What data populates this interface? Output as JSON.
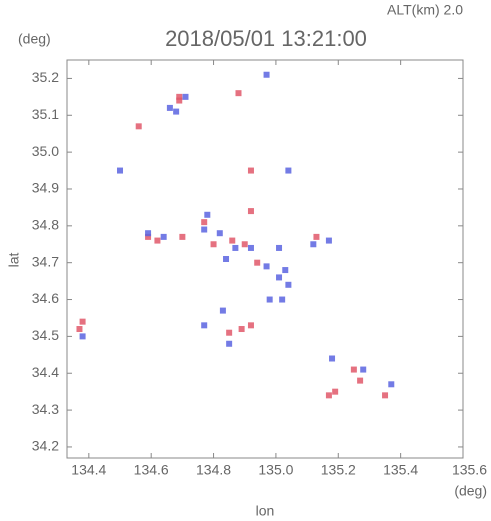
{
  "chart_data": {
    "type": "scatter",
    "title": "2018/05/01 13:21:00",
    "annotation": "ALT(km) 2.0",
    "y_unit": "(deg)",
    "x_unit": "(deg)",
    "xlabel": "lon",
    "ylabel": "lat",
    "xlim": [
      134.33,
      135.6
    ],
    "ylim": [
      34.17,
      35.25
    ],
    "xticks": [
      134.4,
      134.6,
      134.8,
      {
        "value": 135.0,
        "label": "135.0"
      },
      135.2,
      135.4,
      135.6
    ],
    "yticks": [
      34.2,
      34.3,
      34.4,
      34.5,
      34.6,
      34.7,
      34.8,
      34.9,
      {
        "value": 35.0,
        "label": "35.0"
      },
      35.1,
      35.2
    ],
    "series": [
      {
        "color": "#e0586a",
        "x": [
          134.38,
          134.37,
          134.59,
          134.62,
          134.7,
          134.77,
          134.8,
          134.86,
          134.9,
          134.94,
          134.89,
          134.92,
          134.85,
          134.92,
          135.25,
          135.27,
          135.17,
          135.19,
          135.35,
          134.69,
          134.69,
          134.92,
          134.56,
          134.88,
          135.13
        ],
        "values": [
          34.54,
          34.52,
          34.77,
          34.76,
          34.77,
          34.81,
          34.75,
          34.76,
          34.75,
          34.7,
          34.52,
          34.53,
          34.51,
          34.84,
          34.41,
          34.38,
          34.34,
          34.35,
          34.34,
          35.15,
          35.14,
          34.95,
          35.07,
          35.16,
          34.77
        ]
      },
      {
        "color": "#5a64e0",
        "x": [
          134.38,
          134.66,
          134.68,
          134.71,
          134.59,
          134.64,
          134.78,
          134.77,
          134.82,
          134.84,
          134.87,
          134.92,
          134.97,
          135.01,
          135.04,
          135.03,
          134.98,
          134.83,
          134.85,
          134.77,
          135.12,
          135.17,
          135.18,
          135.28,
          135.37,
          135.04,
          134.5,
          134.97,
          135.01,
          135.02
        ],
        "values": [
          34.5,
          35.12,
          35.11,
          35.15,
          34.78,
          34.77,
          34.83,
          34.79,
          34.78,
          34.71,
          34.74,
          34.74,
          34.69,
          34.66,
          34.64,
          34.68,
          34.6,
          34.57,
          34.48,
          34.53,
          34.75,
          34.76,
          34.44,
          34.41,
          34.37,
          34.95,
          34.95,
          35.21,
          34.74,
          34.6
        ]
      }
    ]
  }
}
